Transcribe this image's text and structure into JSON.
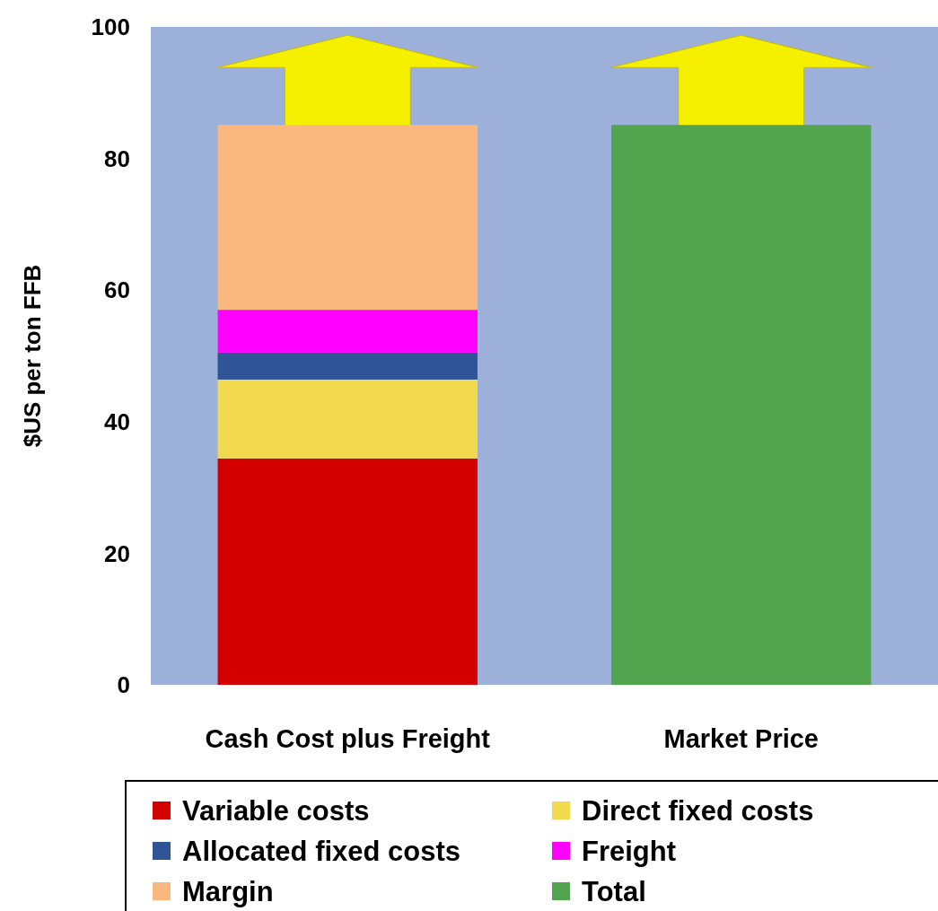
{
  "chart_data": {
    "type": "bar",
    "stacked": true,
    "ylabel": "$US per ton FFB",
    "categories": [
      "Cash Cost plus Freight",
      "Market Price"
    ],
    "series": [
      {
        "name": "Variable costs",
        "color": "#d40000",
        "values": [
          34.4,
          null
        ]
      },
      {
        "name": "Direct fixed costs",
        "color": "#f2d94e",
        "values": [
          12,
          null
        ]
      },
      {
        "name": "Allocated fixed costs",
        "color": "#2f5597",
        "values": [
          4.1,
          null
        ]
      },
      {
        "name": "Freight",
        "color": "#ff00ff",
        "values": [
          6.5,
          null
        ]
      },
      {
        "name": "Margin",
        "color": "#fbb87e",
        "values": [
          28.1,
          null
        ]
      },
      {
        "name": "Total",
        "color": "#52a44e",
        "values": [
          null,
          85.1
        ]
      }
    ],
    "ylim": [
      0,
      100
    ],
    "yticks": [
      0,
      20,
      40,
      60,
      80,
      100
    ],
    "grid": false,
    "legend": "bottom"
  }
}
